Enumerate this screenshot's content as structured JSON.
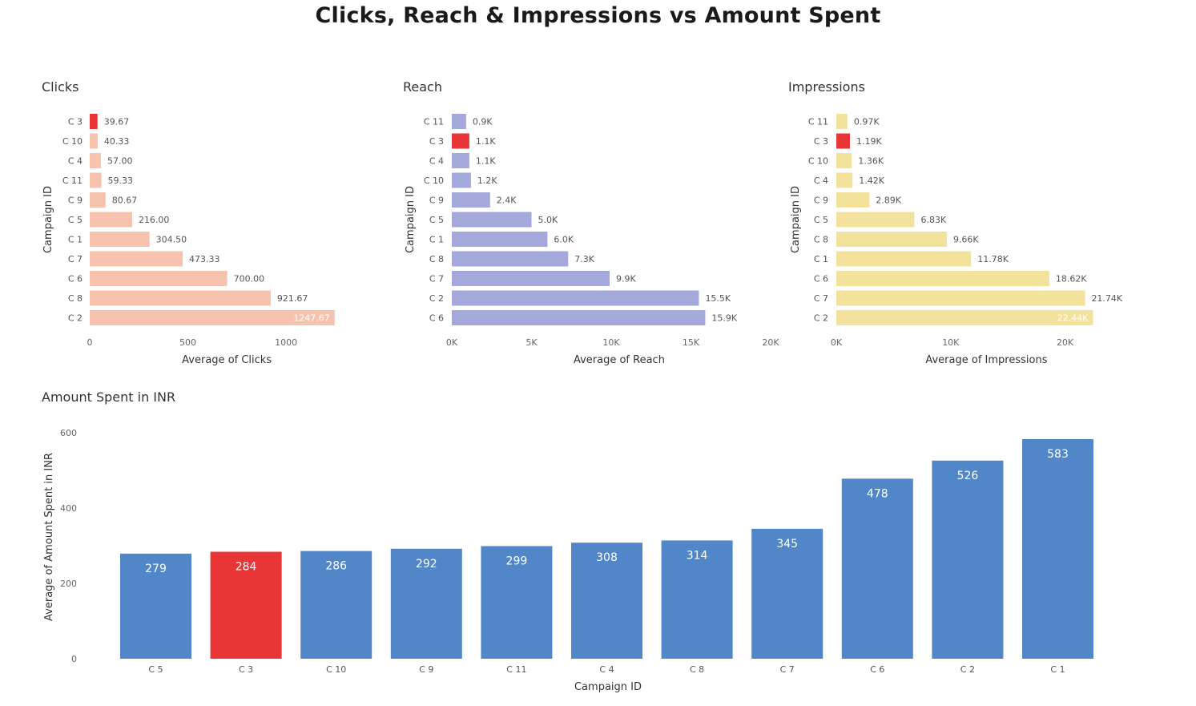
{
  "title": "Clicks, Reach & Impressions vs Amount Spent",
  "colors": {
    "highlight": "#e83536",
    "clicks": "#f6c3ae",
    "reach": "#a4a8db",
    "impressions": "#f2e29c",
    "amount": "#5187c8"
  },
  "chart_data": [
    {
      "type": "bar",
      "orientation": "horizontal",
      "title": "Clicks",
      "xlabel": "Average of Clicks",
      "ylabel": "Campaign ID",
      "categories": [
        "C 3",
        "C 10",
        "C 4",
        "C 11",
        "C 9",
        "C 5",
        "C 1",
        "C 7",
        "C 6",
        "C 8",
        "C 2"
      ],
      "values": [
        39.67,
        40.33,
        57.0,
        59.33,
        80.67,
        216.0,
        304.5,
        473.33,
        700.0,
        921.67,
        1247.67
      ],
      "labels": [
        "39.67",
        "40.33",
        "57.00",
        "59.33",
        "80.67",
        "216.00",
        "304.50",
        "473.33",
        "700.00",
        "921.67",
        "1247.67"
      ],
      "highlight": "C 3",
      "xlim": [
        0,
        1330
      ],
      "xticks": [
        0,
        500,
        1000
      ],
      "xtick_labels": [
        "0",
        "500",
        "1000"
      ]
    },
    {
      "type": "bar",
      "orientation": "horizontal",
      "title": "Reach",
      "xlabel": "Average of Reach",
      "ylabel": "Campaign ID",
      "categories": [
        "C 11",
        "C 3",
        "C 4",
        "C 10",
        "C 9",
        "C 5",
        "C 1",
        "C 8",
        "C 7",
        "C 2",
        "C 6"
      ],
      "values": [
        900,
        1100,
        1100,
        1200,
        2400,
        5000,
        6000,
        7300,
        9900,
        15500,
        15900
      ],
      "labels": [
        "0.9K",
        "1.1K",
        "1.1K",
        "1.2K",
        "2.4K",
        "5.0K",
        "6.0K",
        "7.3K",
        "9.9K",
        "15.5K",
        "15.9K"
      ],
      "highlight": "C 3",
      "xlim": [
        0,
        20000
      ],
      "xticks": [
        0,
        5000,
        10000,
        15000,
        20000
      ],
      "xtick_labels": [
        "0K",
        "5K",
        "10K",
        "15K",
        "20K"
      ]
    },
    {
      "type": "bar",
      "orientation": "horizontal",
      "title": "Impressions",
      "xlabel": "Average of Impressions",
      "ylabel": "Campaign ID",
      "categories": [
        "C 11",
        "C 3",
        "C 10",
        "C 4",
        "C 9",
        "C 5",
        "C 8",
        "C 1",
        "C 6",
        "C 7",
        "C 2"
      ],
      "values": [
        970,
        1190,
        1360,
        1420,
        2890,
        6830,
        9660,
        11780,
        18620,
        21740,
        22440
      ],
      "labels": [
        "0.97K",
        "1.19K",
        "1.36K",
        "1.42K",
        "2.89K",
        "6.83K",
        "9.66K",
        "11.78K",
        "18.62K",
        "21.74K",
        "22.44K"
      ],
      "highlight": "C 3",
      "xlim": [
        0,
        25000
      ],
      "xticks": [
        0,
        10000,
        20000
      ],
      "xtick_labels": [
        "0K",
        "10K",
        "20K"
      ]
    },
    {
      "type": "bar",
      "orientation": "vertical",
      "title": "Amount Spent in INR",
      "xlabel": "Campaign ID",
      "ylabel": "Average of Amount Spent in INR",
      "categories": [
        "C 5",
        "C 3",
        "C 10",
        "C 9",
        "C 11",
        "C 4",
        "C 8",
        "C 7",
        "C 6",
        "C 2",
        "C 1"
      ],
      "values": [
        279,
        284,
        286,
        292,
        299,
        308,
        314,
        345,
        478,
        526,
        583
      ],
      "labels": [
        "279",
        "284",
        "286",
        "292",
        "299",
        "308",
        "314",
        "345",
        "478",
        "526",
        "583"
      ],
      "highlight": "C 3",
      "ylim": [
        0,
        600
      ],
      "yticks": [
        0,
        200,
        400,
        600
      ],
      "ytick_labels": [
        "0",
        "200",
        "400",
        "600"
      ]
    }
  ]
}
